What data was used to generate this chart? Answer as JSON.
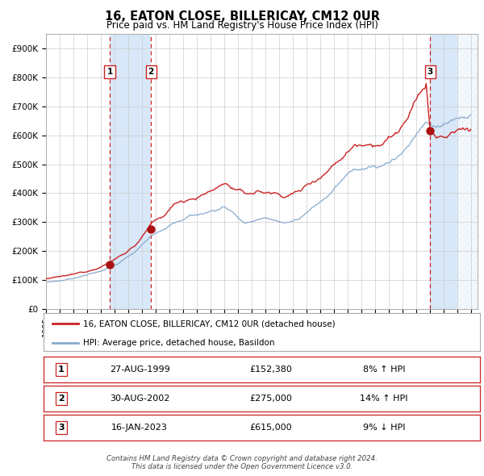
{
  "title": "16, EATON CLOSE, BILLERICAY, CM12 0UR",
  "subtitle": "Price paid vs. HM Land Registry's House Price Index (HPI)",
  "hpi_label": "HPI: Average price, detached house, Basildon",
  "price_label": "16, EATON CLOSE, BILLERICAY, CM12 0UR (detached house)",
  "ylabel_values": [
    0,
    100000,
    200000,
    300000,
    400000,
    500000,
    600000,
    700000,
    800000,
    900000
  ],
  "ylabel_texts": [
    "£0",
    "£100K",
    "£200K",
    "£300K",
    "£400K",
    "£500K",
    "£600K",
    "£700K",
    "£800K",
    "£900K"
  ],
  "xmin": 1995.0,
  "xmax": 2026.5,
  "ymin": 0,
  "ymax": 950000,
  "sale_dates": [
    1999.653,
    2002.664,
    2023.046
  ],
  "sale_prices": [
    152380,
    275000,
    615000
  ],
  "sale_labels": [
    "1",
    "2",
    "3"
  ],
  "sale_annotations": [
    [
      "27-AUG-1999",
      "£152,380",
      "8% ↑ HPI"
    ],
    [
      "30-AUG-2002",
      "£275,000",
      "14% ↑ HPI"
    ],
    [
      "16-JAN-2023",
      "£615,000",
      "9% ↓ HPI"
    ]
  ],
  "vline_color": "#cc0000",
  "shade_color": "#d8e8f8",
  "hpi_color": "#88aacc",
  "price_color": "#cc2222",
  "dot_color": "#aa1111",
  "grid_color": "#cccccc",
  "bg_color": "#ffffff",
  "footer": "Contains HM Land Registry data © Crown copyright and database right 2024.\nThis data is licensed under the Open Government Licence v3.0.",
  "start_year": 1995,
  "end_year": 2026
}
